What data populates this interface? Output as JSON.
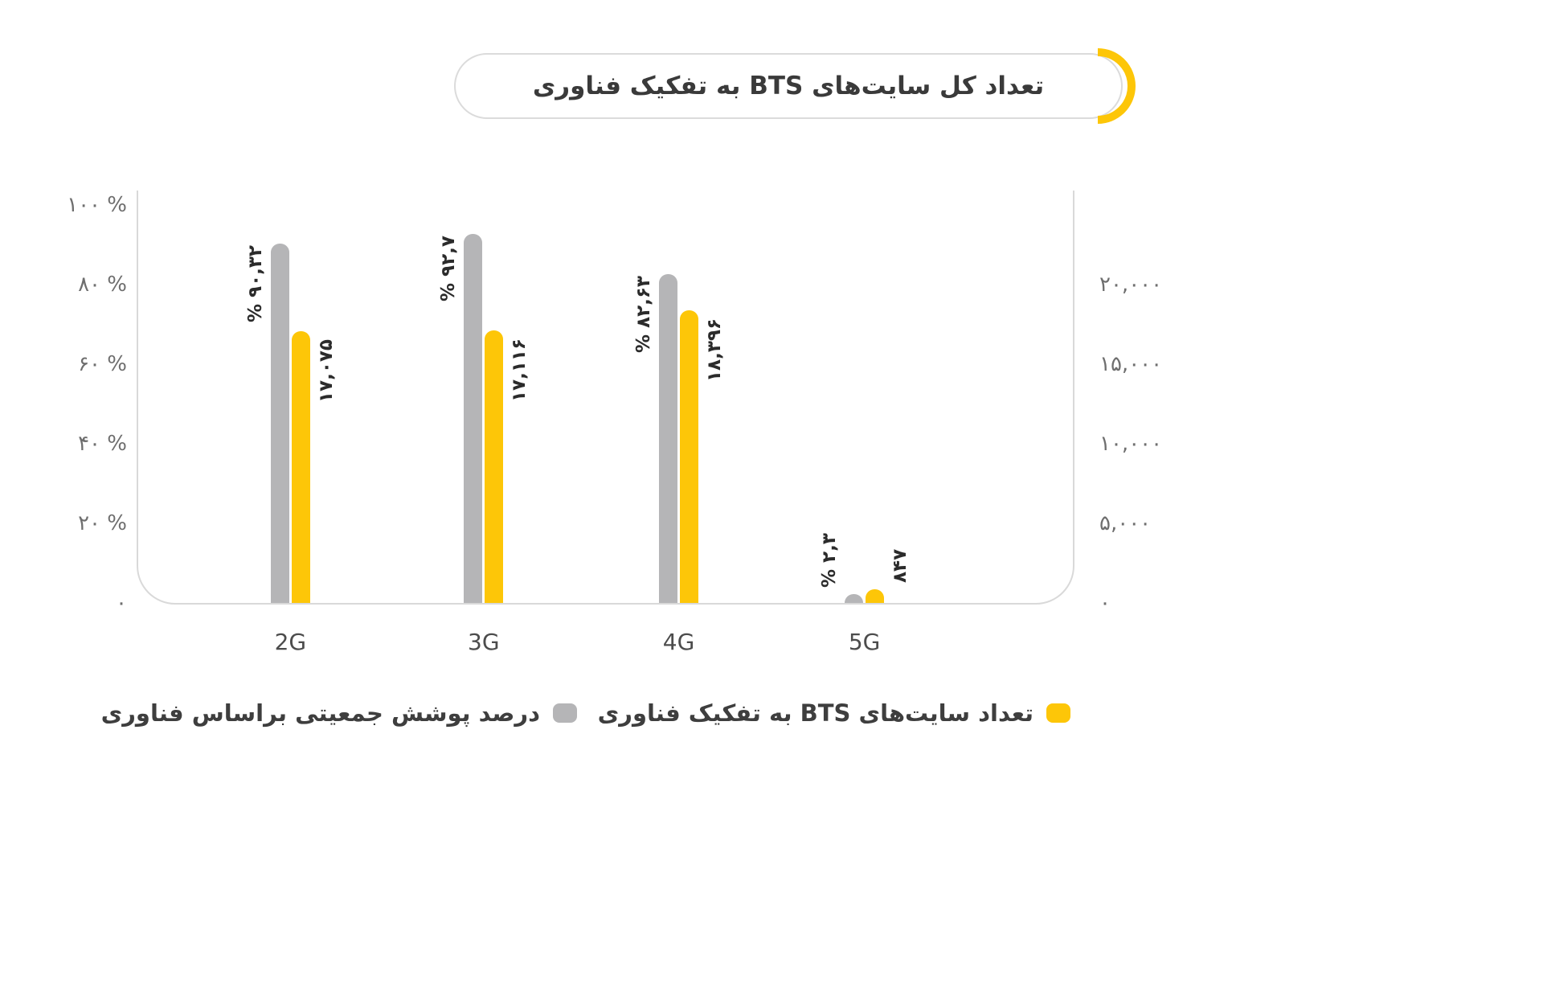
{
  "header": {
    "title": "تعداد کل سایت‌های BTS به تفکیک فناوری"
  },
  "chart_data": {
    "type": "bar",
    "title": "تعداد کل سایت‌های BTS به تفکیک فناوری",
    "categories": [
      "2G",
      "3G",
      "4G",
      "5G"
    ],
    "series": [
      {
        "name": "درصد پوشش جمعیتی براساس فناوری",
        "axis": "left-percent",
        "color": "#b5b5b7",
        "values": [
          90.32,
          92.7,
          82.63,
          2.3
        ],
        "labels": [
          "۹۰,۳۲ %",
          "۹۲,۷ %",
          "۸۲,۶۳ %",
          "۲,۳ %"
        ]
      },
      {
        "name": "تعداد سایت‌های BTS به تفکیک فناوری",
        "axis": "right-count",
        "color": "#fdc608",
        "values": [
          17075,
          17116,
          18396,
          847
        ],
        "labels": [
          "۱۷,۰۷۵",
          "۱۷,۱۱۶",
          "۱۸,۳۹۶",
          "۸۴۷"
        ]
      }
    ],
    "left_axis": {
      "max": 100,
      "ticks": [
        {
          "label": "۱۰۰ %",
          "value": 100
        },
        {
          "label": "۸۰ %",
          "value": 80
        },
        {
          "label": "۶۰ %",
          "value": 60
        },
        {
          "label": "۴۰ %",
          "value": 40
        },
        {
          "label": "۲۰ %",
          "value": 20
        },
        {
          "label": "۰",
          "value": 0
        }
      ]
    },
    "right_axis": {
      "full_scale": 25000,
      "ticks": [
        {
          "label": "۲۰,۰۰۰",
          "value": 20000
        },
        {
          "label": "۱۵,۰۰۰",
          "value": 15000
        },
        {
          "label": "۱۰,۰۰۰",
          "value": 10000
        },
        {
          "label": "۵,۰۰۰",
          "value": 5000
        },
        {
          "label": "۰",
          "value": 0
        }
      ]
    },
    "grid": false,
    "legend_position": "bottom"
  },
  "legend": {
    "items": [
      {
        "key": "sites",
        "label": "تعداد سایت‌های BTS به تفکیک فناوری",
        "color": "#fdc608"
      },
      {
        "key": "coverage",
        "label": "درصد پوشش جمعیتی براساس فناوری",
        "color": "#b5b5b7"
      }
    ]
  }
}
